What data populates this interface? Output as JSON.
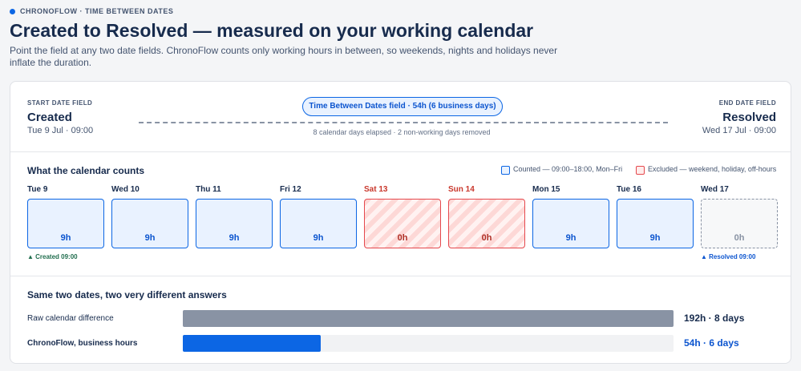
{
  "header": {
    "eyebrow": "CHRONOFLOW · TIME BETWEEN DATES",
    "title": "Created to Resolved — measured on your working calendar",
    "description": "Point the field at any two date fields. ChronoFlow counts only working hours in between, so weekends, nights and holidays never inflate the duration."
  },
  "range": {
    "start_caption": "START DATE FIELD",
    "start_field": "Created",
    "start_date": "Tue 9 Jul · 09:00",
    "pill": "Time Between Dates field · 54h (6 business days)",
    "note": "8 calendar days elapsed · 2 non-working days removed",
    "end_caption": "END DATE FIELD",
    "end_field": "Resolved",
    "end_date": "Wed 17 Jul · 09:00"
  },
  "calendar": {
    "title": "What the calendar counts",
    "legend": {
      "counted": "Counted — 09:00–18:00, Mon–Fri",
      "excluded": "Excluded — weekend, holiday, off-hours"
    },
    "days": [
      {
        "label": "Tue 9",
        "hours": "9h",
        "status": "counted",
        "marker": "▲ Created 09:00",
        "marker_color": "#216e4e"
      },
      {
        "label": "Wed 10",
        "hours": "9h",
        "status": "counted"
      },
      {
        "label": "Thu 11",
        "hours": "9h",
        "status": "counted"
      },
      {
        "label": "Fri 12",
        "hours": "9h",
        "status": "counted"
      },
      {
        "label": "Sat 13",
        "hours": "0h",
        "status": "excluded"
      },
      {
        "label": "Sun 14",
        "hours": "0h",
        "status": "excluded"
      },
      {
        "label": "Mon 15",
        "hours": "9h",
        "status": "counted"
      },
      {
        "label": "Tue 16",
        "hours": "9h",
        "status": "counted"
      },
      {
        "label": "Wed 17",
        "hours": "0h",
        "status": "pending",
        "marker": "▲ Resolved 09:00",
        "marker_color": "#0c55cf"
      }
    ]
  },
  "comparison": {
    "title": "Same two dates, two very different answers",
    "xlim": [
      0,
      192
    ],
    "rows": [
      {
        "label": "Raw calendar difference",
        "value": 192,
        "value_label": "192h · 8 days",
        "color": "#8993a4",
        "label_color": "#172b4d",
        "bold": false
      },
      {
        "label": "ChronoFlow, business hours",
        "value": 54,
        "value_label": "54h · 6 days",
        "color": "#0c66e4",
        "label_color": "#0c55cf",
        "bold": true
      }
    ]
  }
}
